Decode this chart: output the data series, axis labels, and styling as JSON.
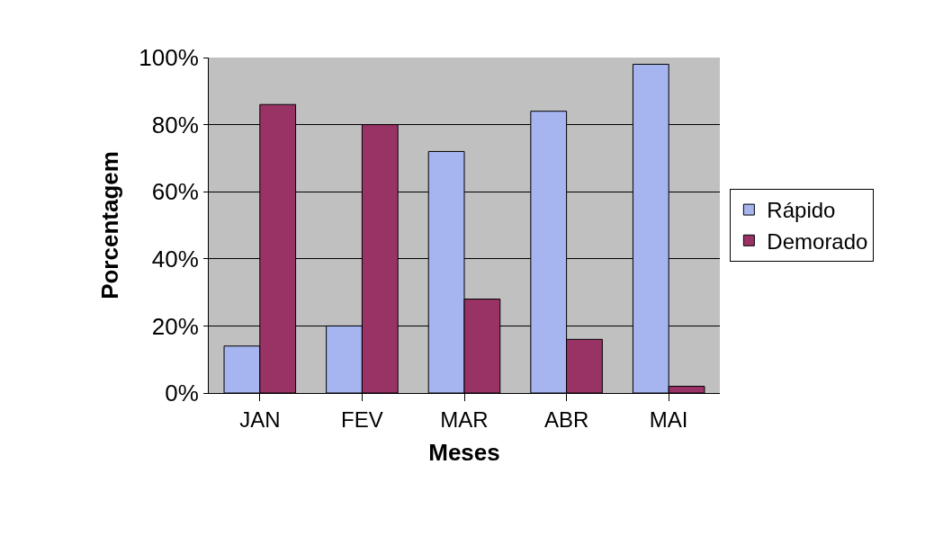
{
  "chart_data": {
    "type": "bar",
    "xlabel": "Meses",
    "ylabel": "Porcentagem",
    "categories": [
      "JAN",
      "FEV",
      "MAR",
      "ABR",
      "MAI"
    ],
    "series": [
      {
        "name": "Rápido",
        "color": "#a6b4f0",
        "values": [
          14,
          20,
          72,
          84,
          98
        ]
      },
      {
        "name": "Demorado",
        "color": "#993366",
        "values": [
          86,
          80,
          28,
          16,
          2
        ]
      }
    ],
    "ylim": [
      0,
      100
    ],
    "yticks": [
      {
        "value": 0,
        "label": "0%"
      },
      {
        "value": 20,
        "label": "20%"
      },
      {
        "value": 40,
        "label": "40%"
      },
      {
        "value": 60,
        "label": "60%"
      },
      {
        "value": 80,
        "label": "80%"
      },
      {
        "value": 100,
        "label": "100%"
      }
    ],
    "grid": "y",
    "legend": "right"
  }
}
